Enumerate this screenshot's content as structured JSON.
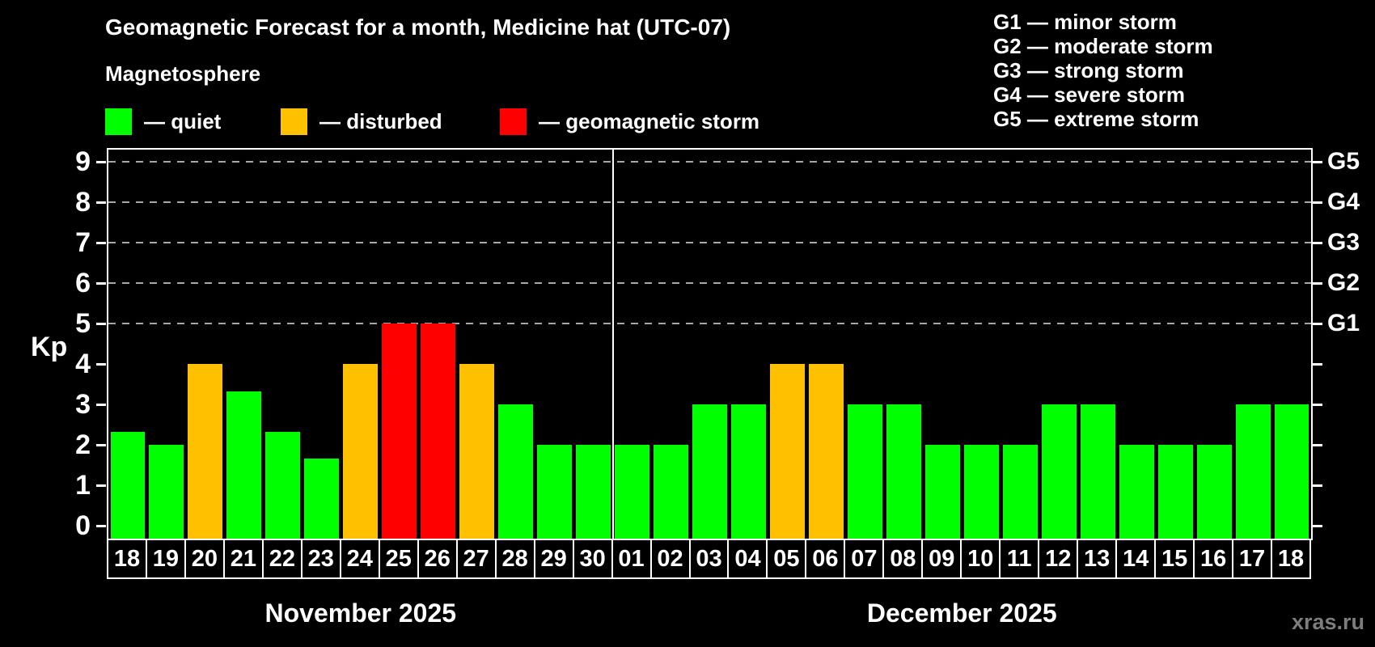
{
  "page": {
    "title": "Geomagnetic Forecast for a month, Medicine hat (UTC-07)",
    "subtitle": "Magnetosphere",
    "watermark": "xras.ru"
  },
  "legend": {
    "items": [
      {
        "key": "quiet",
        "label": "— quiet",
        "color": "#00ff00"
      },
      {
        "key": "disturbed",
        "label": "— disturbed",
        "color": "#ffc000"
      },
      {
        "key": "storm",
        "label": "— geomagnetic storm",
        "color": "#ff0000"
      }
    ]
  },
  "g_scale_legend": {
    "lines": [
      "G1 — minor storm",
      "G2 — moderate storm",
      "G3 — strong storm",
      "G4 — severe storm",
      "G5 — extreme storm"
    ]
  },
  "chart_data": {
    "type": "bar",
    "title": "Geomagnetic Forecast for a month, Medicine hat (UTC-07)",
    "ylabel": "Kp",
    "ylim": [
      0,
      9
    ],
    "yticks": [
      0,
      1,
      2,
      3,
      4,
      5,
      6,
      7,
      8,
      9
    ],
    "grid": "dashed horizontal lines at storm levels Kp 5-9 only",
    "gridlines_at_kp": [
      5,
      6,
      7,
      8,
      9
    ],
    "legend_position": "top-left",
    "right_axis": [
      {
        "kp": 5,
        "label": "G1"
      },
      {
        "kp": 6,
        "label": "G2"
      },
      {
        "kp": 7,
        "label": "G3"
      },
      {
        "kp": 8,
        "label": "G4"
      },
      {
        "kp": 9,
        "label": "G5"
      }
    ],
    "months": [
      {
        "label": "November 2025",
        "days": [
          "18",
          "19",
          "20",
          "21",
          "22",
          "23",
          "24",
          "25",
          "26",
          "27",
          "28",
          "29",
          "30"
        ],
        "values": [
          2.33,
          2,
          4,
          3.33,
          2.33,
          1.67,
          4,
          5,
          5,
          4,
          3,
          2,
          2
        ],
        "status": [
          "quiet",
          "quiet",
          "disturbed",
          "quiet",
          "quiet",
          "quiet",
          "disturbed",
          "storm",
          "storm",
          "disturbed",
          "quiet",
          "quiet",
          "quiet"
        ]
      },
      {
        "label": "December 2025",
        "days": [
          "01",
          "02",
          "03",
          "04",
          "05",
          "06",
          "07",
          "08",
          "09",
          "10",
          "11",
          "12",
          "13",
          "14",
          "15",
          "16",
          "17",
          "18"
        ],
        "values": [
          2,
          2,
          3,
          3,
          4,
          4,
          3,
          3,
          2,
          2,
          2,
          3,
          3,
          2,
          2,
          2,
          3,
          3
        ],
        "status": [
          "quiet",
          "quiet",
          "quiet",
          "quiet",
          "disturbed",
          "disturbed",
          "quiet",
          "quiet",
          "quiet",
          "quiet",
          "quiet",
          "quiet",
          "quiet",
          "quiet",
          "quiet",
          "quiet",
          "quiet",
          "quiet"
        ]
      }
    ]
  },
  "colors": {
    "background": "#000000",
    "axis": "#ffffff",
    "grid": "#a8a8a8",
    "quiet": "#00ff00",
    "disturbed": "#ffc000",
    "storm": "#ff0000",
    "watermark": "#7d7d7d"
  }
}
